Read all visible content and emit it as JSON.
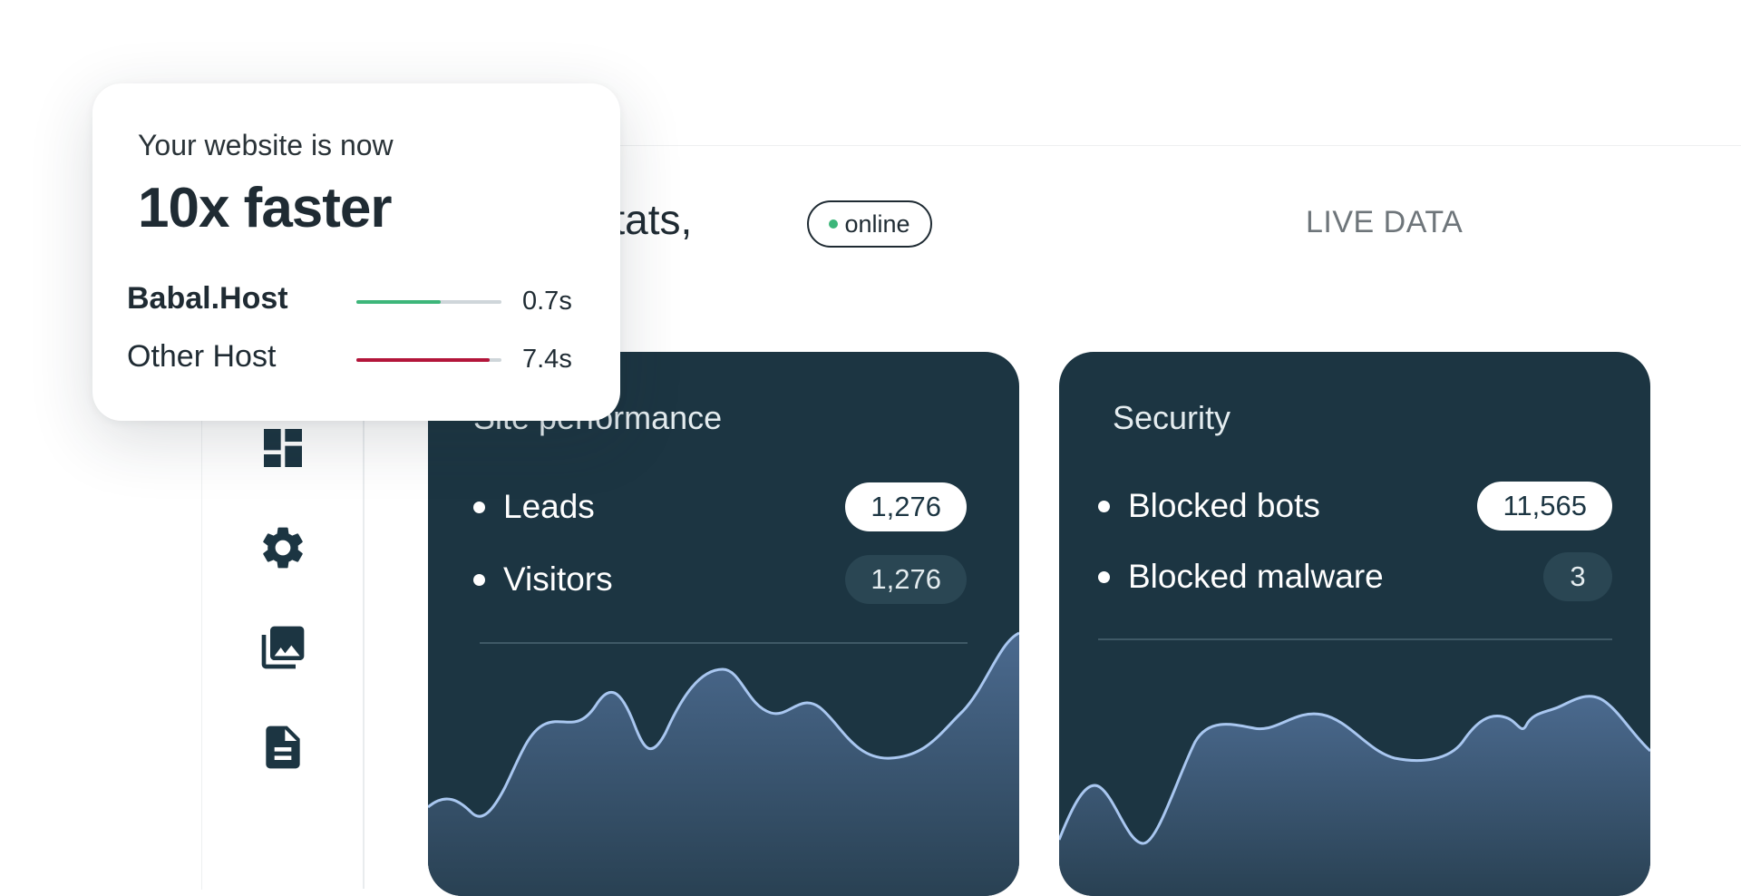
{
  "header": {
    "greeting": "Your Stats,",
    "status": "online",
    "live_label": "LIVE DATA"
  },
  "sidebar": {
    "icons": [
      "dashboard-icon",
      "gear-icon",
      "photo-library-icon",
      "document-icon"
    ]
  },
  "performance_card": {
    "title": "Site performance",
    "metrics": [
      {
        "label": "Leads",
        "value": "1,276"
      },
      {
        "label": "Visitors",
        "value": "1,276"
      }
    ]
  },
  "security_card": {
    "title": "Security",
    "metrics": [
      {
        "label": "Blocked bots",
        "value": "11,565"
      },
      {
        "label": "Blocked malware",
        "value": "3"
      }
    ]
  },
  "speed_popup": {
    "intro": "Your website is now",
    "headline": "10x faster",
    "hosts": [
      {
        "name": "Babal.Host",
        "time": "0.7s",
        "bar_fraction": 0.58,
        "color": "#3db67a"
      },
      {
        "name": "Other Host",
        "time": "7.4s",
        "bar_fraction": 0.92,
        "color": "#b3153a"
      }
    ]
  },
  "colors": {
    "card_bg": "#1c3542",
    "wave_fill": "#3f5d7c",
    "wave_line": "#a9c7f0",
    "online_dot": "#3db67a"
  }
}
